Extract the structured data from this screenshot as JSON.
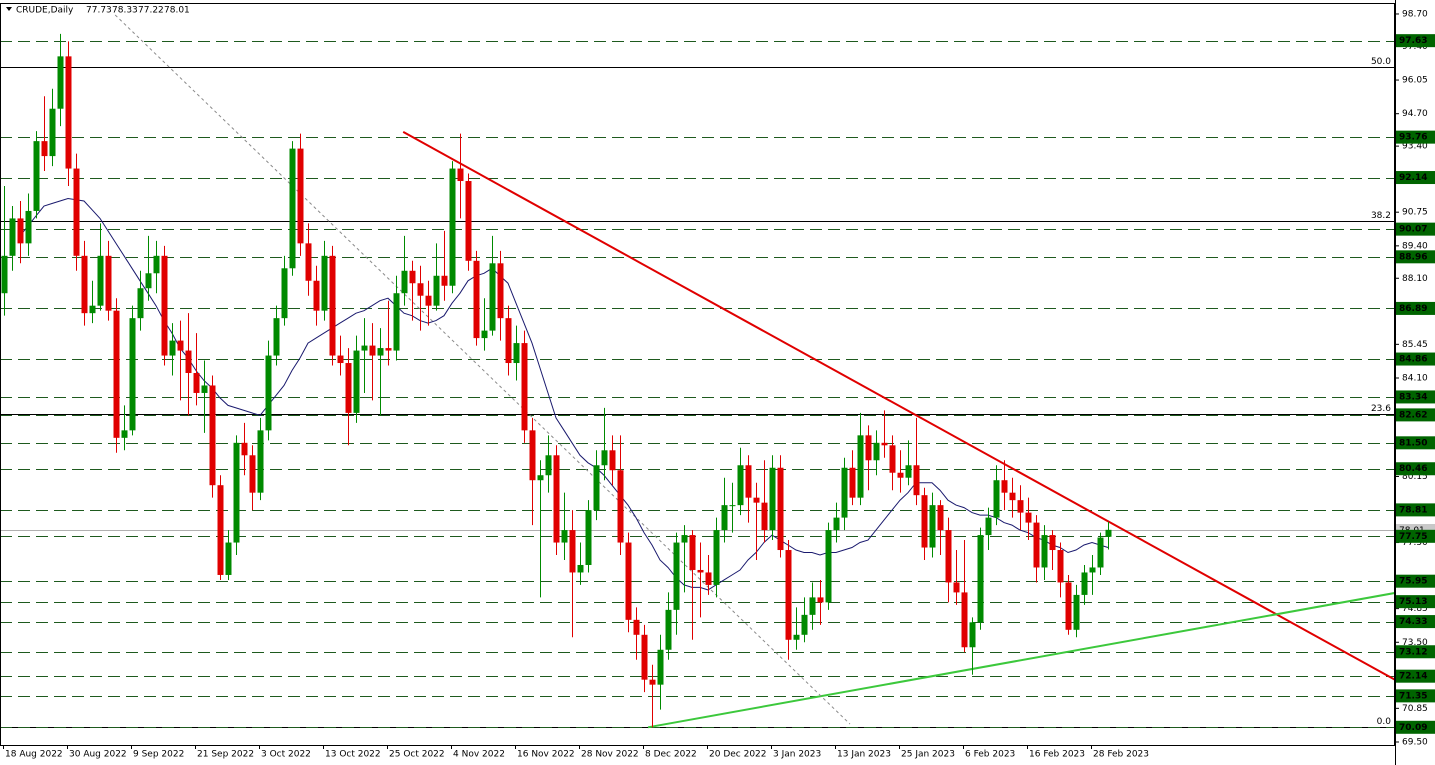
{
  "chart_data": {
    "type": "candlestick",
    "title": "CRUDE,Daily",
    "up_color": "#008a00",
    "down_color": "#e00000",
    "ma_color": "#1a1a6e",
    "level_color": "#006400",
    "ylim": [
      69.38,
      99.1
    ],
    "yticks": [
      {
        "value": 98.7,
        "label": "98.70"
      },
      {
        "value": 97.4,
        "label": "97.40"
      },
      96.05,
      {
        "value": 94.7,
        "label": "94.70"
      },
      {
        "value": 93.4,
        "label": "93.40"
      },
      90.75,
      {
        "value": 89.4,
        "label": "89.40"
      },
      {
        "value": 88.1,
        "label": "88.10"
      },
      85.45,
      {
        "value": 84.1,
        "label": "84.10"
      },
      80.15,
      {
        "value": 77.5,
        "label": "77.50"
      },
      74.85,
      {
        "value": 73.5,
        "label": "73.50"
      },
      70.85,
      {
        "value": 69.5,
        "label": "69.50"
      }
    ],
    "levels": [
      97.63,
      93.76,
      92.14,
      90.07,
      88.96,
      86.89,
      84.86,
      83.34,
      82.62,
      {
        "value": 81.5,
        "label": "81.50"
      },
      80.46,
      78.81,
      77.75,
      75.95,
      75.13,
      74.33,
      73.12,
      72.14,
      71.35,
      70.09
    ],
    "fib": [
      {
        "label": "50.0",
        "value": 96.57
      },
      {
        "label": "38.2",
        "value": 90.38
      },
      {
        "label": "23.6",
        "value": 82.67
      },
      {
        "label": "0.0",
        "value": 70.09
      }
    ],
    "trendlines": [
      {
        "color": "#e00000",
        "x": [
          49.9,
          173.9
        ],
        "y": [
          93.97,
          71.99
        ]
      },
      {
        "color": "#3cc83c",
        "x": [
          80.5,
          173.9
        ],
        "y": [
          70.09,
          75.48
        ]
      },
      {
        "color": "#8a8a8a",
        "x": [
          13.9,
          105.75
        ],
        "y": [
          98.66,
          70.22
        ],
        "dashed": true
      }
    ],
    "categories": [
      "18 Aug 2022",
      null,
      null,
      null,
      null,
      null,
      null,
      null,
      "30 Aug 2022",
      null,
      null,
      null,
      null,
      null,
      null,
      null,
      "9 Sep 2022",
      null,
      null,
      null,
      null,
      null,
      null,
      null,
      "21 Sep 2022",
      null,
      null,
      null,
      null,
      null,
      null,
      null,
      "3 Oct 2022",
      null,
      null,
      null,
      null,
      null,
      null,
      null,
      "13 Oct 2022",
      null,
      null,
      null,
      null,
      null,
      null,
      null,
      "25 Oct 2022",
      null,
      null,
      null,
      null,
      null,
      null,
      null,
      "4 Nov 2022",
      null,
      null,
      null,
      null,
      null,
      null,
      null,
      "16 Nov 2022",
      null,
      null,
      null,
      null,
      null,
      null,
      null,
      "28 Nov 2022",
      null,
      null,
      null,
      null,
      null,
      null,
      null,
      "8 Dec 2022",
      null,
      null,
      null,
      null,
      null,
      null,
      null,
      "20 Dec 2022",
      null,
      null,
      null,
      null,
      null,
      null,
      null,
      "3 Jan 2023",
      null,
      null,
      null,
      null,
      null,
      null,
      null,
      "13 Jan 2023",
      null,
      null,
      null,
      null,
      null,
      null,
      null,
      "25 Jan 2023",
      null,
      null,
      null,
      null,
      null,
      null,
      null,
      "6 Feb 2023",
      null,
      null,
      null,
      null,
      null,
      null,
      null,
      "16 Feb 2023",
      null,
      null,
      null,
      null,
      null,
      null,
      null,
      "28 Feb 2023",
      null,
      null
    ],
    "candles": [
      [
        87.5,
        91.8,
        86.6,
        89.0
      ],
      [
        89.0,
        91.0,
        88.4,
        90.5
      ],
      [
        90.5,
        91.2,
        88.7,
        89.5
      ],
      [
        89.5,
        91.5,
        89.0,
        90.8
      ],
      [
        90.8,
        94.0,
        90.5,
        93.6
      ],
      [
        93.6,
        95.4,
        92.4,
        93.0
      ],
      [
        93.0,
        95.7,
        92.6,
        94.9
      ],
      [
        94.9,
        97.9,
        94.2,
        97.0
      ],
      [
        97.0,
        97.6,
        91.8,
        92.5
      ],
      [
        92.5,
        93.1,
        88.4,
        89.0
      ],
      [
        89.0,
        89.6,
        86.2,
        86.7
      ],
      [
        86.7,
        88.0,
        86.3,
        87.0
      ],
      [
        87.0,
        90.3,
        86.8,
        89.0
      ],
      [
        89.0,
        89.6,
        86.4,
        86.8
      ],
      [
        86.8,
        87.3,
        81.1,
        81.7
      ],
      [
        81.7,
        83.0,
        81.2,
        82.0
      ],
      [
        82.0,
        87.0,
        81.8,
        86.5
      ],
      [
        86.5,
        88.4,
        86.0,
        87.7
      ],
      [
        87.7,
        89.8,
        87.2,
        88.3
      ],
      [
        88.3,
        89.6,
        87.5,
        89.0
      ],
      [
        89.0,
        89.4,
        84.6,
        85.0
      ],
      [
        85.0,
        86.3,
        84.2,
        85.6
      ],
      [
        85.6,
        86.4,
        83.2,
        85.2
      ],
      [
        85.2,
        86.7,
        82.6,
        84.3
      ],
      [
        84.3,
        85.9,
        83.0,
        83.5
      ],
      [
        83.5,
        84.8,
        81.9,
        83.8
      ],
      [
        83.8,
        84.2,
        79.3,
        79.8
      ],
      [
        79.8,
        80.2,
        76.0,
        76.2
      ],
      [
        76.2,
        78.0,
        76.0,
        77.5
      ],
      [
        77.5,
        81.8,
        77.0,
        81.5
      ],
      [
        81.5,
        82.3,
        80.2,
        81.0
      ],
      [
        81.0,
        81.4,
        78.8,
        79.5
      ],
      [
        79.5,
        82.5,
        79.2,
        82.0
      ],
      [
        82.0,
        85.6,
        81.6,
        85.0
      ],
      [
        85.0,
        87.0,
        84.6,
        86.5
      ],
      [
        86.5,
        89.0,
        86.2,
        88.5
      ],
      [
        88.5,
        93.6,
        88.2,
        93.3
      ],
      [
        93.3,
        93.9,
        89.0,
        89.5
      ],
      [
        89.5,
        90.3,
        87.4,
        88.0
      ],
      [
        88.0,
        88.6,
        86.2,
        86.8
      ],
      [
        86.8,
        89.6,
        86.4,
        89.0
      ],
      [
        89.0,
        89.4,
        84.6,
        85.0
      ],
      [
        85.0,
        85.8,
        84.2,
        84.7
      ],
      [
        84.7,
        85.3,
        81.4,
        82.7
      ],
      [
        82.7,
        85.8,
        82.3,
        85.2
      ],
      [
        85.2,
        86.5,
        83.5,
        85.4
      ],
      [
        85.4,
        86.3,
        83.2,
        85.0
      ],
      [
        85.0,
        86.1,
        82.6,
        85.3
      ],
      [
        85.3,
        87.2,
        84.6,
        85.2
      ],
      [
        85.2,
        88.2,
        84.8,
        87.5
      ],
      [
        87.5,
        89.8,
        87.0,
        88.4
      ],
      [
        88.4,
        88.8,
        86.4,
        87.9
      ],
      [
        87.9,
        88.6,
        86.0,
        87.4
      ],
      [
        87.4,
        88.0,
        86.2,
        87.0
      ],
      [
        87.0,
        89.5,
        86.8,
        88.2
      ],
      [
        88.2,
        90.0,
        87.2,
        87.8
      ],
      [
        87.8,
        92.8,
        87.5,
        92.5
      ],
      [
        92.5,
        93.9,
        90.5,
        92.0
      ],
      [
        92.0,
        92.3,
        88.4,
        88.8
      ],
      [
        88.8,
        89.2,
        85.4,
        85.7
      ],
      [
        85.7,
        87.3,
        85.2,
        86.0
      ],
      [
        86.0,
        89.8,
        85.8,
        88.7
      ],
      [
        88.7,
        89.2,
        85.6,
        86.5
      ],
      [
        86.5,
        87.0,
        84.2,
        84.7
      ],
      [
        84.7,
        86.2,
        84.0,
        85.5
      ],
      [
        85.5,
        86.0,
        81.5,
        82.0
      ],
      [
        82.0,
        82.5,
        78.2,
        80.0
      ],
      [
        80.0,
        80.8,
        75.3,
        80.2
      ],
      [
        80.2,
        81.8,
        79.5,
        81.0
      ],
      [
        81.0,
        81.4,
        77.0,
        77.5
      ],
      [
        77.5,
        79.5,
        76.8,
        78.0
      ],
      [
        78.0,
        78.8,
        73.7,
        76.3
      ],
      [
        76.3,
        77.5,
        75.8,
        76.6
      ],
      [
        76.6,
        79.2,
        76.3,
        78.8
      ],
      [
        78.8,
        81.2,
        78.4,
        80.6
      ],
      [
        80.6,
        82.9,
        80.0,
        81.2
      ],
      [
        81.2,
        81.8,
        79.8,
        80.4
      ],
      [
        80.4,
        81.8,
        77.0,
        77.5
      ],
      [
        77.5,
        77.9,
        73.9,
        74.4
      ],
      [
        74.4,
        74.9,
        72.8,
        73.8
      ],
      [
        73.8,
        74.2,
        71.5,
        72.0
      ],
      [
        72.0,
        72.6,
        70.09,
        71.8
      ],
      [
        71.8,
        73.8,
        70.8,
        73.2
      ],
      [
        73.2,
        75.5,
        72.8,
        74.8
      ],
      [
        74.8,
        77.9,
        73.8,
        77.5
      ],
      [
        77.5,
        78.2,
        75.5,
        77.8
      ],
      [
        77.8,
        78.0,
        73.6,
        76.4
      ],
      [
        76.4,
        77.5,
        74.5,
        76.3
      ],
      [
        76.3,
        77.0,
        75.4,
        75.8
      ],
      [
        75.8,
        78.5,
        75.3,
        78.0
      ],
      [
        78.0,
        80.1,
        77.5,
        79.0
      ],
      [
        79.0,
        79.9,
        77.9,
        79.0
      ],
      [
        79.0,
        81.3,
        78.6,
        80.6
      ],
      [
        80.6,
        81.0,
        78.3,
        79.3
      ],
      [
        79.3,
        79.9,
        76.8,
        79.1
      ],
      [
        79.1,
        80.8,
        77.5,
        78.0
      ],
      [
        78.0,
        81.0,
        77.6,
        80.5
      ],
      [
        80.5,
        81.0,
        76.9,
        77.2
      ],
      [
        77.2,
        77.6,
        72.8,
        73.6
      ],
      [
        73.6,
        74.9,
        73.2,
        73.8
      ],
      [
        73.8,
        75.3,
        73.5,
        74.6
      ],
      [
        74.6,
        75.9,
        74.0,
        75.3
      ],
      [
        75.3,
        76.0,
        74.2,
        75.1
      ],
      [
        75.1,
        78.3,
        74.8,
        78.0
      ],
      [
        78.0,
        79.1,
        77.5,
        78.5
      ],
      [
        78.5,
        80.9,
        78.0,
        80.5
      ],
      [
        80.5,
        81.2,
        79.0,
        79.3
      ],
      [
        79.3,
        82.7,
        79.0,
        81.8
      ],
      [
        81.8,
        82.2,
        79.6,
        80.8
      ],
      [
        80.8,
        82.0,
        80.2,
        81.5
      ],
      [
        81.5,
        82.8,
        80.9,
        81.4
      ],
      [
        81.4,
        81.8,
        79.6,
        80.3
      ],
      [
        80.3,
        81.2,
        79.5,
        80.1
      ],
      [
        80.1,
        81.6,
        79.8,
        80.6
      ],
      [
        80.6,
        82.5,
        79.0,
        79.4
      ],
      [
        79.4,
        79.7,
        76.8,
        77.3
      ],
      [
        77.3,
        79.5,
        76.9,
        79.0
      ],
      [
        79.0,
        79.2,
        77.0,
        78.0
      ],
      [
        78.0,
        78.5,
        75.1,
        75.9
      ],
      [
        75.9,
        77.2,
        75.0,
        75.5
      ],
      [
        75.5,
        77.6,
        73.1,
        73.3
      ],
      [
        73.3,
        74.5,
        72.2,
        74.3
      ],
      [
        74.3,
        78.1,
        74.0,
        77.8
      ],
      [
        77.8,
        78.9,
        77.2,
        78.5
      ],
      [
        78.5,
        80.6,
        78.2,
        80.0
      ],
      [
        80.0,
        80.8,
        78.8,
        79.5
      ],
      [
        79.5,
        80.1,
        78.5,
        79.2
      ],
      [
        79.2,
        79.8,
        78.0,
        78.7
      ],
      [
        78.7,
        79.3,
        77.6,
        78.3
      ],
      [
        78.3,
        78.6,
        75.9,
        76.5
      ],
      [
        76.5,
        78.2,
        76.0,
        77.8
      ],
      [
        77.8,
        78.0,
        76.4,
        77.2
      ],
      [
        77.2,
        77.5,
        75.3,
        75.9
      ],
      [
        75.9,
        76.2,
        73.8,
        74.0
      ],
      [
        74.0,
        75.8,
        73.7,
        75.4
      ],
      [
        75.4,
        76.6,
        75.0,
        76.3
      ],
      [
        76.3,
        77.0,
        75.4,
        76.5
      ],
      [
        76.5,
        77.9,
        76.2,
        77.7
      ],
      [
        77.73,
        78.33,
        77.22,
        78.01
      ]
    ],
    "ma": [
      null,
      null,
      89.8,
      90.2,
      90.6,
      91.0,
      91.1,
      91.2,
      91.3,
      91.25,
      91.2,
      90.85,
      90.5,
      90.0,
      89.5,
      89.0,
      88.5,
      88.0,
      87.5,
      87.0,
      86.4,
      85.9,
      85.3,
      84.9,
      84.4,
      84.0,
      83.7,
      83.3,
      83.0,
      82.9,
      82.8,
      82.7,
      82.6,
      83.0,
      83.4,
      83.8,
      84.4,
      84.9,
      85.5,
      85.7,
      85.9,
      86.1,
      86.3,
      86.5,
      86.7,
      86.8,
      87.0,
      87.2,
      87.3,
      87.0,
      86.7,
      86.6,
      86.4,
      86.3,
      86.4,
      86.6,
      87.1,
      87.5,
      88.0,
      88.2,
      88.3,
      88.5,
      88.2,
      87.9,
      87.1,
      86.3,
      85.5,
      84.5,
      83.5,
      82.5,
      82.0,
      81.5,
      81.0,
      80.7,
      80.5,
      80.2,
      79.8,
      79.4,
      79.0,
      78.5,
      77.9,
      77.4,
      76.8,
      76.5,
      76.1,
      75.8,
      75.7,
      75.7,
      75.6,
      75.8,
      76.0,
      76.2,
      76.4,
      76.8,
      77.1,
      77.5,
      77.8,
      77.6,
      77.4,
      77.2,
      77.1,
      77.1,
      77.0,
      77.1,
      77.1,
      77.2,
      77.3,
      77.5,
      77.6,
      78.0,
      78.4,
      78.8,
      79.2,
      79.5,
      79.9,
      79.9,
      79.9,
      79.6,
      79.2,
      79.0,
      78.9,
      78.7,
      78.6,
      78.6,
      78.5,
      78.3,
      78.2,
      78.0,
      77.9,
      77.7,
      77.6,
      77.4,
      77.3,
      77.1,
      77.2,
      77.4,
      77.5,
      77.4,
      77.3
    ]
  }
}
